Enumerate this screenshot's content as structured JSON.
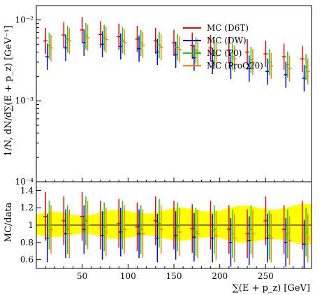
{
  "chart_data": {
    "type": "scatter",
    "xlabel": "∑(E + p_z) [GeV]",
    "ylabel_top": "1/N, dN/d∑(E + p_z) [GeV⁻¹]",
    "ylabel_bottom": "MC/data",
    "xlim": [
      0,
      300
    ],
    "ylim_top": [
      0.0001,
      0.015
    ],
    "ylim_bottom": [
      0.5,
      1.5
    ],
    "log_y_top": true,
    "x_tick_labels": [
      "50",
      "100",
      "150",
      "200",
      "250"
    ],
    "y_tick_labels_top": [
      "10⁻²",
      "10⁻³",
      "10⁻⁴"
    ],
    "y_tick_labels_bottom": [
      "0.6",
      "0.8",
      "1",
      "1.2",
      "1.4"
    ],
    "data_band_color": "#ffff00",
    "legend_position": "top-right",
    "series": [
      {
        "name": "MC (D6T)",
        "color": "#ff0000",
        "x": [
          10,
          30,
          50,
          70,
          90,
          110,
          130,
          150,
          170,
          190,
          210,
          230,
          250,
          270,
          290
        ],
        "y": [
          0.0055,
          0.0065,
          0.0075,
          0.0066,
          0.0062,
          0.0058,
          0.0055,
          0.0052,
          0.0048,
          0.0045,
          0.0042,
          0.004,
          0.0038,
          0.0035,
          0.0033
        ],
        "ratio": [
          1.1,
          1.05,
          1.1,
          1.0,
          1.02,
          0.98,
          1.05,
          1.0,
          0.96,
          1.0,
          0.95,
          0.9,
          1.05,
          0.95,
          1.0
        ]
      },
      {
        "name": "MC (DW)",
        "color": "#0000ff",
        "x": [
          12,
          32,
          52,
          72,
          92,
          112,
          132,
          152,
          172,
          192,
          212,
          232,
          252,
          272,
          292
        ],
        "y": [
          0.0035,
          0.0045,
          0.0052,
          0.005,
          0.0047,
          0.0044,
          0.004,
          0.0037,
          0.0034,
          0.0031,
          0.0027,
          0.0025,
          0.0023,
          0.0021,
          0.0019
        ],
        "ratio": [
          0.85,
          0.9,
          0.95,
          0.88,
          0.92,
          0.9,
          0.85,
          0.88,
          0.86,
          0.85,
          0.8,
          0.82,
          0.85,
          0.8,
          0.78
        ]
      },
      {
        "name": "MC (P0)",
        "color": "#00dd00",
        "x": [
          14,
          34,
          54,
          74,
          94,
          114,
          134,
          154,
          174,
          194,
          214,
          234,
          254,
          274,
          294
        ],
        "y": [
          0.0048,
          0.0058,
          0.0063,
          0.006,
          0.0056,
          0.0052,
          0.0049,
          0.0046,
          0.0042,
          0.0039,
          0.0035,
          0.0032,
          0.003,
          0.0028,
          0.0026
        ],
        "ratio": [
          1.0,
          0.95,
          1.05,
          0.98,
          1.0,
          0.95,
          1.02,
          0.98,
          0.92,
          0.95,
          0.9,
          0.95,
          0.88,
          0.9,
          0.92
        ]
      },
      {
        "name": "MC (ProQ20)",
        "color": "#ff8000",
        "x": [
          16,
          36,
          56,
          76,
          96,
          116,
          136,
          156,
          176,
          196,
          216,
          236,
          256,
          276,
          296
        ],
        "y": [
          0.0045,
          0.0055,
          0.006,
          0.0057,
          0.0053,
          0.0049,
          0.0046,
          0.0043,
          0.004,
          0.0036,
          0.0033,
          0.003,
          0.0027,
          0.0025,
          0.0023
        ],
        "ratio": [
          0.95,
          0.9,
          1.0,
          0.92,
          0.95,
          0.9,
          0.95,
          0.92,
          0.9,
          0.88,
          0.85,
          0.9,
          0.85,
          0.82,
          0.85
        ]
      }
    ]
  }
}
